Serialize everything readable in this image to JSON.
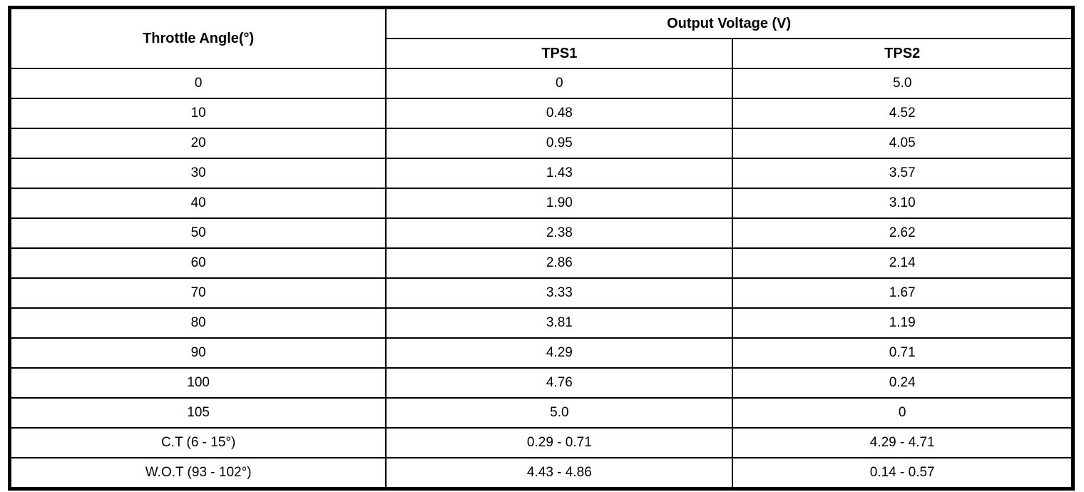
{
  "table": {
    "angle_header": "Throttle Angle(°)",
    "voltage_group_header": "Output Voltage (V)",
    "sub_headers": {
      "tps1": "TPS1",
      "tps2": "TPS2"
    },
    "rows": [
      {
        "angle": "0",
        "tps1": "0",
        "tps2": "5.0"
      },
      {
        "angle": "10",
        "tps1": "0.48",
        "tps2": "4.52"
      },
      {
        "angle": "20",
        "tps1": "0.95",
        "tps2": "4.05"
      },
      {
        "angle": "30",
        "tps1": "1.43",
        "tps2": "3.57"
      },
      {
        "angle": "40",
        "tps1": "1.90",
        "tps2": "3.10"
      },
      {
        "angle": "50",
        "tps1": "2.38",
        "tps2": "2.62"
      },
      {
        "angle": "60",
        "tps1": "2.86",
        "tps2": "2.14"
      },
      {
        "angle": "70",
        "tps1": "3.33",
        "tps2": "1.67"
      },
      {
        "angle": "80",
        "tps1": "3.81",
        "tps2": "1.19"
      },
      {
        "angle": "90",
        "tps1": "4.29",
        "tps2": "0.71"
      },
      {
        "angle": "100",
        "tps1": "4.76",
        "tps2": "0.24"
      },
      {
        "angle": "105",
        "tps1": "5.0",
        "tps2": "0"
      },
      {
        "angle": "C.T (6 - 15°)",
        "tps1": "0.29 - 0.71",
        "tps2": "4.29 - 4.71"
      },
      {
        "angle": "W.O.T (93 - 102°)",
        "tps1": "4.43 - 4.86",
        "tps2": "0.14 - 0.57"
      }
    ],
    "colors": {
      "border": "#000000",
      "background": "#ffffff",
      "text": "#000000"
    }
  }
}
